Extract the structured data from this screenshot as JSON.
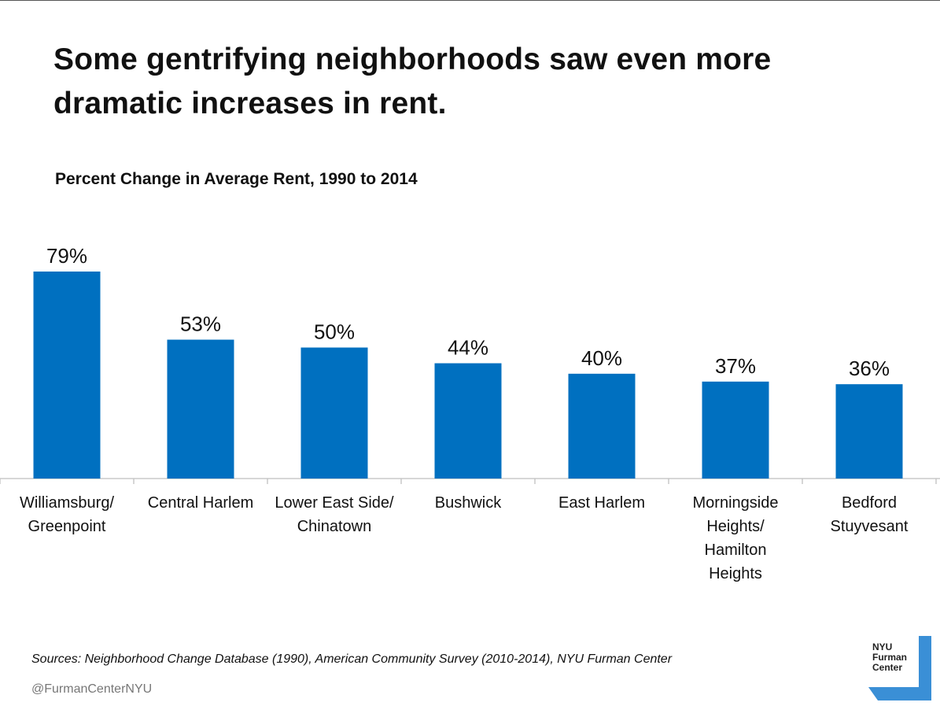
{
  "title": "Some gentrifying neighborhoods saw even more dramatic increases in rent.",
  "subtitle": "Percent Change in Average Rent, 1990 to 2014",
  "chart_data": {
    "type": "bar",
    "title": "Percent Change in Average Rent, 1990 to 2014",
    "xlabel": "",
    "ylabel": "",
    "ylim": [
      0,
      79
    ],
    "categories": [
      [
        "Williamsburg/",
        "Greenpoint"
      ],
      [
        "Central Harlem"
      ],
      [
        "Lower East Side/",
        "Chinatown"
      ],
      [
        "Bushwick"
      ],
      [
        "East Harlem"
      ],
      [
        "Morningside",
        "Heights/",
        "Hamilton",
        "Heights"
      ],
      [
        "Bedford",
        "Stuyvesant"
      ]
    ],
    "values": [
      79,
      53,
      50,
      44,
      40,
      37,
      36
    ],
    "labels": [
      "79%",
      "53%",
      "50%",
      "44%",
      "40%",
      "37%",
      "36%"
    ],
    "bar_color": "#0070c0",
    "axis_color": "#bfbfbf"
  },
  "footer": {
    "sources": "Sources: Neighborhood Change Database (1990), American Community Survey (2010-2014), NYU Furman Center",
    "handle": "@FurmanCenterNYU"
  },
  "logo": {
    "line1": "NYU",
    "line2": "Furman",
    "line3": "Center",
    "color": "#3a8fd6"
  }
}
